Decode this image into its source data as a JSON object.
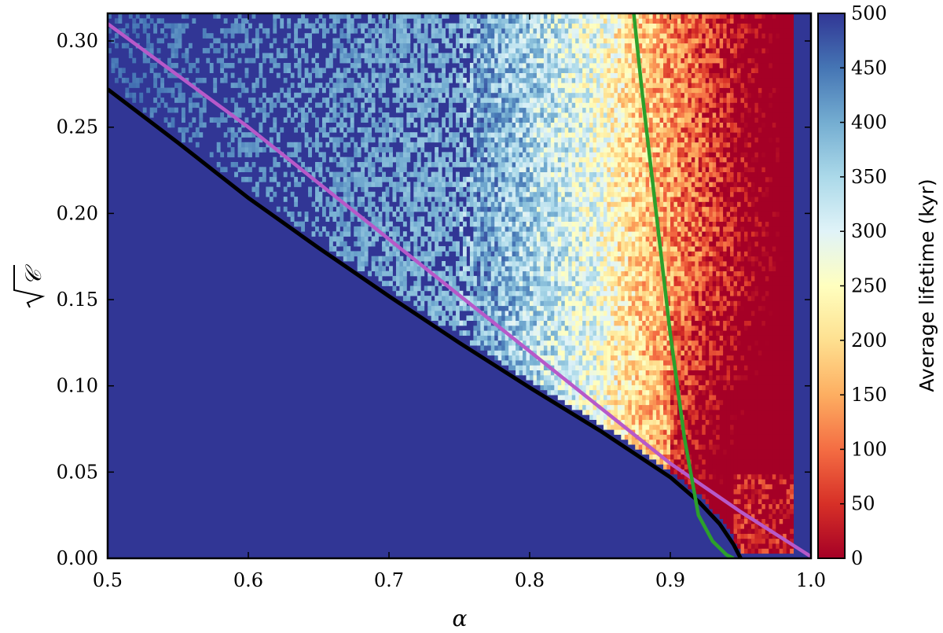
{
  "chart_data": {
    "type": "heatmap",
    "xlabel": "α",
    "ylabel_symbol": "𝒞",
    "xlim": [
      0.5,
      1.0
    ],
    "ylim": [
      0.0,
      0.316
    ],
    "x_ticks": [
      "0.5",
      "0.6",
      "0.7",
      "0.8",
      "0.9",
      "1.0"
    ],
    "x_tick_values": [
      0.5,
      0.6,
      0.7,
      0.8,
      0.9,
      1.0
    ],
    "y_ticks": [
      "0.00",
      "0.05",
      "0.10",
      "0.15",
      "0.20",
      "0.25",
      "0.30"
    ],
    "y_tick_values": [
      0.0,
      0.05,
      0.1,
      0.15,
      0.2,
      0.25,
      0.3
    ],
    "colorbar": {
      "label": "Average lifetime (kyr)",
      "range": [
        0,
        500
      ],
      "ticks": [
        "0",
        "50",
        "100",
        "150",
        "200",
        "250",
        "300",
        "350",
        "400",
        "450",
        "500"
      ],
      "tick_values": [
        0,
        50,
        100,
        150,
        200,
        250,
        300,
        350,
        400,
        450,
        500
      ],
      "colormap": "RdYlBu",
      "stops": [
        "#a50026",
        "#d73027",
        "#f46d43",
        "#fdae61",
        "#fee090",
        "#ffffbf",
        "#e0f3f8",
        "#abd9e9",
        "#74add1",
        "#4575b4",
        "#313695"
      ]
    },
    "grid": false,
    "legend": "none",
    "curves": [
      {
        "color": "#000000",
        "x": [
          0.5,
          0.55,
          0.6,
          0.65,
          0.7,
          0.75,
          0.8,
          0.85,
          0.9,
          0.92,
          0.935,
          0.945,
          0.95
        ],
        "y": [
          0.272,
          0.241,
          0.209,
          0.18,
          0.152,
          0.125,
          0.099,
          0.074,
          0.047,
          0.033,
          0.02,
          0.008,
          0.0
        ]
      },
      {
        "color": "#b759c9",
        "x": [
          0.5,
          0.6,
          0.7,
          0.8,
          0.9,
          0.95,
          1.0
        ],
        "y": [
          0.31,
          0.25,
          0.185,
          0.12,
          0.055,
          0.027,
          0.001
        ]
      },
      {
        "color": "#2ca02c",
        "x": [
          0.874,
          0.88,
          0.89,
          0.9,
          0.91,
          0.92,
          0.93,
          0.94,
          0.945
        ],
        "y": [
          0.316,
          0.27,
          0.2,
          0.13,
          0.07,
          0.025,
          0.01,
          0.002,
          0.0
        ]
      }
    ]
  }
}
